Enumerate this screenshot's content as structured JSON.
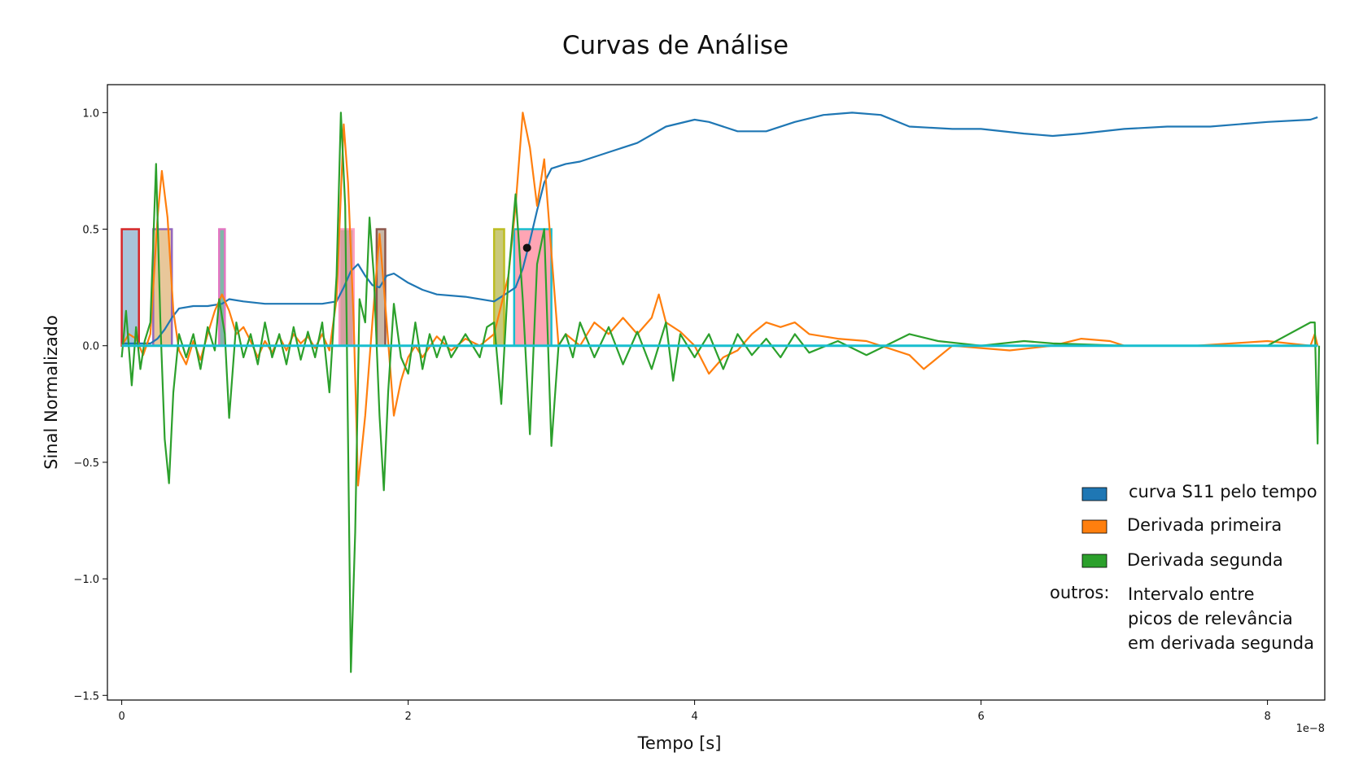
{
  "chart_data": {
    "type": "line",
    "title": "Curvas de Análise",
    "xlabel": "Tempo [s]",
    "ylabel": "Sinal Normalizado",
    "x_offset_text": "1e−8",
    "xlim": [
      -0.1,
      8.4
    ],
    "ylim": [
      -1.52,
      1.12
    ],
    "x_ticks": [
      0,
      2,
      4,
      6,
      8
    ],
    "x_tick_labels": [
      "0",
      "2",
      "4",
      "6",
      "8"
    ],
    "y_ticks": [
      -1.5,
      -1.0,
      -0.5,
      0.0,
      0.5,
      1.0
    ],
    "y_tick_labels": [
      "−1.5",
      "−1.0",
      "−0.5",
      "0.0",
      "0.5",
      "1.0"
    ],
    "grid": false,
    "legend_position": "bottom-right",
    "series": [
      {
        "name": "curva S11 pelo tempo",
        "color": "#1f77b4",
        "points": [
          [
            0,
            0.01
          ],
          [
            0.1,
            0.01
          ],
          [
            0.2,
            0.01
          ],
          [
            0.25,
            0.03
          ],
          [
            0.3,
            0.07
          ],
          [
            0.35,
            0.12
          ],
          [
            0.4,
            0.16
          ],
          [
            0.5,
            0.17
          ],
          [
            0.6,
            0.17
          ],
          [
            0.7,
            0.18
          ],
          [
            0.75,
            0.2
          ],
          [
            0.85,
            0.19
          ],
          [
            1.0,
            0.18
          ],
          [
            1.2,
            0.18
          ],
          [
            1.4,
            0.18
          ],
          [
            1.5,
            0.19
          ],
          [
            1.55,
            0.25
          ],
          [
            1.6,
            0.32
          ],
          [
            1.65,
            0.35
          ],
          [
            1.7,
            0.3
          ],
          [
            1.75,
            0.26
          ],
          [
            1.8,
            0.25
          ],
          [
            1.85,
            0.3
          ],
          [
            1.9,
            0.31
          ],
          [
            2.0,
            0.27
          ],
          [
            2.1,
            0.24
          ],
          [
            2.2,
            0.22
          ],
          [
            2.4,
            0.21
          ],
          [
            2.6,
            0.19
          ],
          [
            2.7,
            0.23
          ],
          [
            2.75,
            0.25
          ],
          [
            2.8,
            0.33
          ],
          [
            2.85,
            0.45
          ],
          [
            2.9,
            0.58
          ],
          [
            2.95,
            0.7
          ],
          [
            3.0,
            0.76
          ],
          [
            3.1,
            0.78
          ],
          [
            3.2,
            0.79
          ],
          [
            3.4,
            0.83
          ],
          [
            3.6,
            0.87
          ],
          [
            3.8,
            0.94
          ],
          [
            4.0,
            0.97
          ],
          [
            4.1,
            0.96
          ],
          [
            4.3,
            0.92
          ],
          [
            4.5,
            0.92
          ],
          [
            4.7,
            0.96
          ],
          [
            4.9,
            0.99
          ],
          [
            5.1,
            1.0
          ],
          [
            5.3,
            0.99
          ],
          [
            5.5,
            0.94
          ],
          [
            5.8,
            0.93
          ],
          [
            6.0,
            0.93
          ],
          [
            6.3,
            0.91
          ],
          [
            6.5,
            0.9
          ],
          [
            6.7,
            0.91
          ],
          [
            7.0,
            0.93
          ],
          [
            7.3,
            0.94
          ],
          [
            7.6,
            0.94
          ],
          [
            8.0,
            0.96
          ],
          [
            8.3,
            0.97
          ],
          [
            8.35,
            0.98
          ]
        ]
      },
      {
        "name": "Derivada primeira",
        "color": "#ff7f0e",
        "points": [
          [
            0,
            0.0
          ],
          [
            0.05,
            0.05
          ],
          [
            0.1,
            0.03
          ],
          [
            0.15,
            -0.04
          ],
          [
            0.2,
            0.05
          ],
          [
            0.25,
            0.55
          ],
          [
            0.28,
            0.75
          ],
          [
            0.32,
            0.55
          ],
          [
            0.36,
            0.15
          ],
          [
            0.4,
            -0.02
          ],
          [
            0.45,
            -0.08
          ],
          [
            0.5,
            0.02
          ],
          [
            0.55,
            -0.06
          ],
          [
            0.6,
            0.05
          ],
          [
            0.65,
            0.15
          ],
          [
            0.7,
            0.22
          ],
          [
            0.75,
            0.15
          ],
          [
            0.8,
            0.05
          ],
          [
            0.85,
            0.08
          ],
          [
            0.9,
            0.02
          ],
          [
            0.95,
            -0.05
          ],
          [
            1.0,
            0.02
          ],
          [
            1.05,
            -0.03
          ],
          [
            1.1,
            0.04
          ],
          [
            1.15,
            -0.02
          ],
          [
            1.2,
            0.05
          ],
          [
            1.25,
            0.01
          ],
          [
            1.3,
            0.04
          ],
          [
            1.35,
            -0.01
          ],
          [
            1.4,
            0.05
          ],
          [
            1.45,
            -0.02
          ],
          [
            1.5,
            0.2
          ],
          [
            1.55,
            0.95
          ],
          [
            1.58,
            0.7
          ],
          [
            1.62,
            0.1
          ],
          [
            1.65,
            -0.6
          ],
          [
            1.7,
            -0.3
          ],
          [
            1.75,
            0.1
          ],
          [
            1.8,
            0.48
          ],
          [
            1.85,
            0.1
          ],
          [
            1.9,
            -0.3
          ],
          [
            1.95,
            -0.15
          ],
          [
            2.0,
            -0.05
          ],
          [
            2.05,
            0.0
          ],
          [
            2.1,
            -0.05
          ],
          [
            2.2,
            0.04
          ],
          [
            2.3,
            -0.02
          ],
          [
            2.4,
            0.03
          ],
          [
            2.5,
            0.0
          ],
          [
            2.6,
            0.05
          ],
          [
            2.7,
            0.3
          ],
          [
            2.75,
            0.6
          ],
          [
            2.8,
            1.0
          ],
          [
            2.85,
            0.85
          ],
          [
            2.9,
            0.6
          ],
          [
            2.95,
            0.8
          ],
          [
            3.0,
            0.4
          ],
          [
            3.05,
            0.0
          ],
          [
            3.1,
            0.05
          ],
          [
            3.2,
            0.0
          ],
          [
            3.3,
            0.1
          ],
          [
            3.4,
            0.05
          ],
          [
            3.5,
            0.12
          ],
          [
            3.6,
            0.05
          ],
          [
            3.7,
            0.12
          ],
          [
            3.75,
            0.22
          ],
          [
            3.8,
            0.1
          ],
          [
            3.9,
            0.06
          ],
          [
            4.0,
            0.0
          ],
          [
            4.1,
            -0.12
          ],
          [
            4.2,
            -0.05
          ],
          [
            4.3,
            -0.02
          ],
          [
            4.4,
            0.05
          ],
          [
            4.5,
            0.1
          ],
          [
            4.6,
            0.08
          ],
          [
            4.7,
            0.1
          ],
          [
            4.8,
            0.05
          ],
          [
            5.0,
            0.03
          ],
          [
            5.2,
            0.02
          ],
          [
            5.5,
            -0.04
          ],
          [
            5.6,
            -0.1
          ],
          [
            5.7,
            -0.05
          ],
          [
            5.8,
            0.0
          ],
          [
            6.0,
            -0.01
          ],
          [
            6.2,
            -0.02
          ],
          [
            6.5,
            0.0
          ],
          [
            6.7,
            0.03
          ],
          [
            6.9,
            0.02
          ],
          [
            7.0,
            0.0
          ],
          [
            7.5,
            0.0
          ],
          [
            8.0,
            0.02
          ],
          [
            8.3,
            0.0
          ],
          [
            8.33,
            0.05
          ],
          [
            8.35,
            0.0
          ]
        ]
      },
      {
        "name": "Derivada segunda",
        "color": "#2ca02c",
        "points": [
          [
            0,
            -0.05
          ],
          [
            0.03,
            0.15
          ],
          [
            0.07,
            -0.17
          ],
          [
            0.1,
            0.08
          ],
          [
            0.13,
            -0.1
          ],
          [
            0.16,
            0.02
          ],
          [
            0.2,
            0.1
          ],
          [
            0.24,
            0.78
          ],
          [
            0.27,
            0.1
          ],
          [
            0.3,
            -0.4
          ],
          [
            0.33,
            -0.59
          ],
          [
            0.36,
            -0.2
          ],
          [
            0.4,
            0.05
          ],
          [
            0.45,
            -0.05
          ],
          [
            0.5,
            0.05
          ],
          [
            0.55,
            -0.1
          ],
          [
            0.6,
            0.08
          ],
          [
            0.65,
            -0.02
          ],
          [
            0.68,
            0.2
          ],
          [
            0.72,
            0.05
          ],
          [
            0.75,
            -0.31
          ],
          [
            0.8,
            0.1
          ],
          [
            0.85,
            -0.05
          ],
          [
            0.9,
            0.05
          ],
          [
            0.95,
            -0.08
          ],
          [
            1.0,
            0.1
          ],
          [
            1.05,
            -0.05
          ],
          [
            1.1,
            0.05
          ],
          [
            1.15,
            -0.08
          ],
          [
            1.2,
            0.08
          ],
          [
            1.25,
            -0.06
          ],
          [
            1.3,
            0.06
          ],
          [
            1.35,
            -0.05
          ],
          [
            1.4,
            0.1
          ],
          [
            1.45,
            -0.2
          ],
          [
            1.5,
            0.3
          ],
          [
            1.53,
            1.0
          ],
          [
            1.56,
            0.6
          ],
          [
            1.6,
            -1.4
          ],
          [
            1.63,
            -0.8
          ],
          [
            1.66,
            0.2
          ],
          [
            1.7,
            0.1
          ],
          [
            1.73,
            0.55
          ],
          [
            1.76,
            0.3
          ],
          [
            1.8,
            -0.3
          ],
          [
            1.83,
            -0.62
          ],
          [
            1.86,
            -0.2
          ],
          [
            1.9,
            0.18
          ],
          [
            1.95,
            -0.05
          ],
          [
            2.0,
            -0.12
          ],
          [
            2.05,
            0.1
          ],
          [
            2.1,
            -0.1
          ],
          [
            2.15,
            0.05
          ],
          [
            2.2,
            -0.05
          ],
          [
            2.25,
            0.04
          ],
          [
            2.3,
            -0.05
          ],
          [
            2.4,
            0.05
          ],
          [
            2.5,
            -0.05
          ],
          [
            2.55,
            0.08
          ],
          [
            2.6,
            0.1
          ],
          [
            2.65,
            -0.25
          ],
          [
            2.7,
            0.3
          ],
          [
            2.75,
            0.65
          ],
          [
            2.8,
            0.2
          ],
          [
            2.85,
            -0.38
          ],
          [
            2.9,
            0.35
          ],
          [
            2.95,
            0.5
          ],
          [
            3.0,
            -0.43
          ],
          [
            3.05,
            0.0
          ],
          [
            3.1,
            0.05
          ],
          [
            3.15,
            -0.05
          ],
          [
            3.2,
            0.1
          ],
          [
            3.3,
            -0.05
          ],
          [
            3.4,
            0.08
          ],
          [
            3.5,
            -0.08
          ],
          [
            3.6,
            0.06
          ],
          [
            3.7,
            -0.1
          ],
          [
            3.8,
            0.1
          ],
          [
            3.85,
            -0.15
          ],
          [
            3.9,
            0.05
          ],
          [
            4.0,
            -0.05
          ],
          [
            4.1,
            0.05
          ],
          [
            4.2,
            -0.1
          ],
          [
            4.3,
            0.05
          ],
          [
            4.4,
            -0.04
          ],
          [
            4.5,
            0.03
          ],
          [
            4.6,
            -0.05
          ],
          [
            4.7,
            0.05
          ],
          [
            4.8,
            -0.03
          ],
          [
            5.0,
            0.02
          ],
          [
            5.2,
            -0.04
          ],
          [
            5.5,
            0.05
          ],
          [
            5.7,
            0.02
          ],
          [
            6.0,
            0.0
          ],
          [
            6.3,
            0.02
          ],
          [
            6.5,
            0.01
          ],
          [
            7.0,
            0.0
          ],
          [
            7.5,
            0.0
          ],
          [
            8.0,
            0.0
          ],
          [
            8.3,
            0.1
          ],
          [
            8.33,
            0.1
          ],
          [
            8.35,
            -0.42
          ],
          [
            8.36,
            0.0
          ]
        ]
      }
    ],
    "intervals": [
      {
        "x0": 0.0,
        "x1": 0.12,
        "height": 0.5,
        "fill": "#a9c4d9",
        "edge": "#d62728"
      },
      {
        "x0": 0.22,
        "x1": 0.35,
        "height": 0.5,
        "fill": "#e8c79a",
        "edge": "#9467bd"
      },
      {
        "x0": 0.68,
        "x1": 0.72,
        "height": 0.5,
        "fill": "#7fb8a8",
        "edge": "#e377c2"
      },
      {
        "x0": 1.52,
        "x1": 1.62,
        "height": 0.5,
        "fill": "#d4a0a0",
        "edge": "#ff9ec0"
      },
      {
        "x0": 1.78,
        "x1": 1.84,
        "height": 0.5,
        "fill": "#c8b8a8",
        "edge": "#8c564b"
      },
      {
        "x0": 2.6,
        "x1": 2.67,
        "height": 0.5,
        "fill": "#c9c97a",
        "edge": "#bcbd22"
      },
      {
        "x0": 2.74,
        "x1": 3.0,
        "height": 0.5,
        "fill": "#ffa5b4",
        "edge": "#17becf"
      }
    ],
    "marker": {
      "x": 2.83,
      "y": 0.42,
      "color": "#111111"
    },
    "baseline_color": "#17becf",
    "legend": {
      "entries": [
        {
          "label": "curva S11 pelo tempo",
          "color": "#1f77b4"
        },
        {
          "label": "Derivada primeira",
          "color": "#ff7f0e"
        },
        {
          "label": "Derivada segunda",
          "color": "#2ca02c"
        }
      ],
      "others_label": "outros:",
      "others_text": [
        "Intervalo entre",
        "picos de relevância",
        "em derivada segunda"
      ]
    }
  }
}
